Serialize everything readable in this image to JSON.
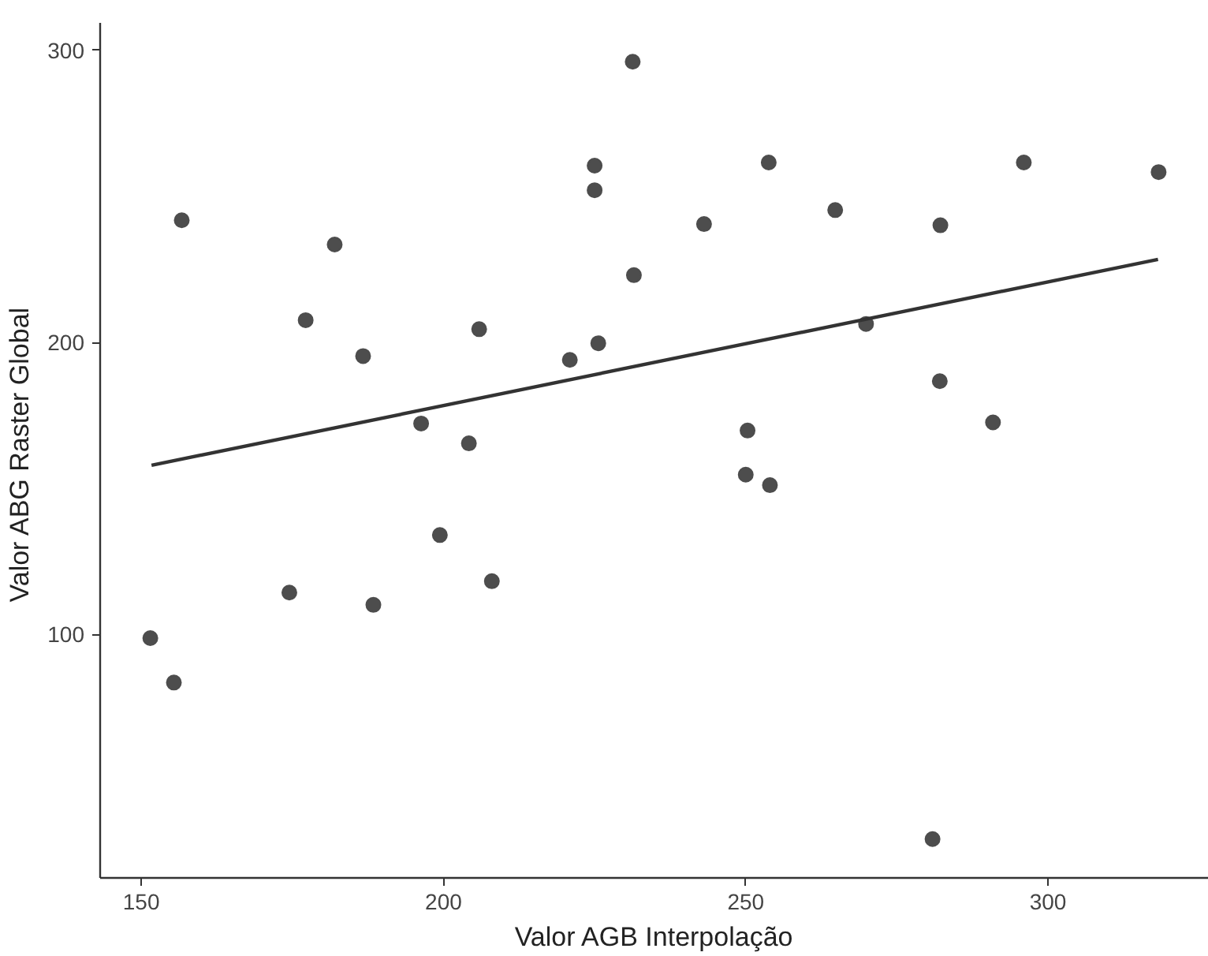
{
  "chart_data": {
    "type": "scatter",
    "xlabel": "Valor AGB Interpolação",
    "ylabel": "Valor ABG Raster  Global",
    "xlim": [
      143.2,
      326.6
    ],
    "ylim": [
      16.6,
      309.4
    ],
    "xticks": [
      150,
      200,
      250,
      300
    ],
    "yticks": [
      100,
      200,
      300
    ],
    "grid": false,
    "marker": "circle",
    "series": [
      {
        "color": "#4d4d4d",
        "x": [
          231.3,
          225.0,
          225.0,
          156.7,
          182.0,
          231.5,
          177.2,
          205.9,
          225.6,
          186.7,
          220.9,
          196.3,
          204.2,
          253.8,
          296.0,
          318.3,
          243.1,
          264.8,
          282.2,
          269.9,
          282.1,
          250.3,
          290.9,
          250.0,
          254.0,
          280.9,
          199.4,
          208.0,
          174.5,
          188.4,
          151.5,
          155.4
        ],
        "values": [
          296.1,
          260.5,
          252.1,
          241.8,
          233.5,
          223.0,
          207.6,
          204.5,
          199.7,
          195.3,
          194.0,
          172.2,
          165.4,
          261.6,
          261.6,
          258.3,
          240.5,
          245.3,
          240.1,
          206.3,
          186.7,
          169.8,
          172.6,
          154.7,
          151.1,
          29.9,
          134.0,
          118.2,
          114.3,
          110.1,
          98.7,
          83.5
        ]
      },
      {
        "type": "line",
        "color": "#333333",
        "marker": "none",
        "x": [
          151.7,
          318.2
        ],
        "values": [
          157.9,
          228.4
        ]
      }
    ]
  }
}
